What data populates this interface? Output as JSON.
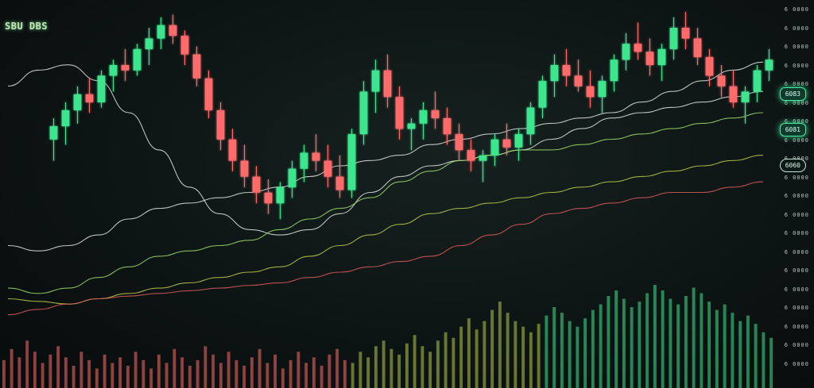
{
  "header": {
    "ticker": "SBU DBS"
  },
  "price_axis": {
    "ticks": [
      "6 0000",
      "6 0000",
      "6 0000",
      "6 0000",
      "6 0000",
      "6 0000",
      "6 0000",
      "6 0000",
      "6 0000",
      "6 0000",
      "6 0000",
      "6 0000",
      "6 0000",
      "6 0000",
      "6 0000",
      "6 0000",
      "6 0000",
      "6 0000",
      "6 0000",
      "6 0000"
    ],
    "badges": [
      "6083",
      "6081",
      "6060"
    ]
  },
  "colors": {
    "up": "#3ee68e",
    "down": "#ff6b6b",
    "ma_white": "#d9dfdc",
    "ma_green": "#9bd86b",
    "ma_red": "#d85a5a",
    "ma_olive": "#b8c84a"
  },
  "chart_data": {
    "type": "line",
    "y_scale": "relative",
    "grid": false,
    "candles": [
      {
        "o": 52,
        "h": 60,
        "l": 44,
        "c": 57
      },
      {
        "o": 57,
        "h": 66,
        "l": 50,
        "c": 63
      },
      {
        "o": 63,
        "h": 72,
        "l": 58,
        "c": 69
      },
      {
        "o": 69,
        "h": 75,
        "l": 62,
        "c": 66
      },
      {
        "o": 66,
        "h": 78,
        "l": 64,
        "c": 76
      },
      {
        "o": 76,
        "h": 82,
        "l": 70,
        "c": 80
      },
      {
        "o": 80,
        "h": 86,
        "l": 74,
        "c": 78
      },
      {
        "o": 78,
        "h": 88,
        "l": 76,
        "c": 86
      },
      {
        "o": 86,
        "h": 94,
        "l": 80,
        "c": 90
      },
      {
        "o": 90,
        "h": 98,
        "l": 86,
        "c": 95
      },
      {
        "o": 95,
        "h": 99,
        "l": 88,
        "c": 91
      },
      {
        "o": 91,
        "h": 93,
        "l": 80,
        "c": 84
      },
      {
        "o": 84,
        "h": 87,
        "l": 72,
        "c": 75
      },
      {
        "o": 75,
        "h": 78,
        "l": 60,
        "c": 63
      },
      {
        "o": 63,
        "h": 66,
        "l": 48,
        "c": 52
      },
      {
        "o": 52,
        "h": 56,
        "l": 40,
        "c": 44
      },
      {
        "o": 44,
        "h": 50,
        "l": 34,
        "c": 38
      },
      {
        "o": 38,
        "h": 42,
        "l": 28,
        "c": 32
      },
      {
        "o": 32,
        "h": 37,
        "l": 24,
        "c": 28
      },
      {
        "o": 28,
        "h": 36,
        "l": 22,
        "c": 34
      },
      {
        "o": 34,
        "h": 44,
        "l": 30,
        "c": 41
      },
      {
        "o": 41,
        "h": 50,
        "l": 36,
        "c": 47
      },
      {
        "o": 47,
        "h": 54,
        "l": 40,
        "c": 44
      },
      {
        "o": 44,
        "h": 50,
        "l": 34,
        "c": 38
      },
      {
        "o": 38,
        "h": 46,
        "l": 30,
        "c": 33
      },
      {
        "o": 33,
        "h": 56,
        "l": 30,
        "c": 54
      },
      {
        "o": 54,
        "h": 74,
        "l": 50,
        "c": 70
      },
      {
        "o": 70,
        "h": 82,
        "l": 62,
        "c": 78
      },
      {
        "o": 78,
        "h": 84,
        "l": 64,
        "c": 68
      },
      {
        "o": 68,
        "h": 72,
        "l": 52,
        "c": 56
      },
      {
        "o": 56,
        "h": 60,
        "l": 48,
        "c": 58
      },
      {
        "o": 58,
        "h": 66,
        "l": 52,
        "c": 63
      },
      {
        "o": 63,
        "h": 70,
        "l": 56,
        "c": 60
      },
      {
        "o": 60,
        "h": 64,
        "l": 50,
        "c": 54
      },
      {
        "o": 54,
        "h": 58,
        "l": 44,
        "c": 48
      },
      {
        "o": 48,
        "h": 52,
        "l": 40,
        "c": 44
      },
      {
        "o": 44,
        "h": 48,
        "l": 36,
        "c": 46
      },
      {
        "o": 46,
        "h": 54,
        "l": 42,
        "c": 52
      },
      {
        "o": 52,
        "h": 58,
        "l": 46,
        "c": 49
      },
      {
        "o": 49,
        "h": 56,
        "l": 44,
        "c": 54
      },
      {
        "o": 54,
        "h": 66,
        "l": 50,
        "c": 64
      },
      {
        "o": 64,
        "h": 76,
        "l": 60,
        "c": 74
      },
      {
        "o": 74,
        "h": 84,
        "l": 68,
        "c": 80
      },
      {
        "o": 80,
        "h": 86,
        "l": 72,
        "c": 76
      },
      {
        "o": 76,
        "h": 82,
        "l": 70,
        "c": 72
      },
      {
        "o": 72,
        "h": 78,
        "l": 64,
        "c": 68
      },
      {
        "o": 68,
        "h": 76,
        "l": 62,
        "c": 74
      },
      {
        "o": 74,
        "h": 84,
        "l": 70,
        "c": 82
      },
      {
        "o": 82,
        "h": 92,
        "l": 78,
        "c": 88
      },
      {
        "o": 88,
        "h": 96,
        "l": 82,
        "c": 85
      },
      {
        "o": 85,
        "h": 90,
        "l": 76,
        "c": 80
      },
      {
        "o": 80,
        "h": 88,
        "l": 74,
        "c": 86
      },
      {
        "o": 86,
        "h": 98,
        "l": 82,
        "c": 94
      },
      {
        "o": 94,
        "h": 100,
        "l": 86,
        "c": 90
      },
      {
        "o": 90,
        "h": 94,
        "l": 80,
        "c": 83
      },
      {
        "o": 83,
        "h": 86,
        "l": 72,
        "c": 76
      },
      {
        "o": 76,
        "h": 80,
        "l": 68,
        "c": 72
      },
      {
        "o": 72,
        "h": 78,
        "l": 64,
        "c": 66
      },
      {
        "o": 66,
        "h": 72,
        "l": 58,
        "c": 70
      },
      {
        "o": 70,
        "h": 80,
        "l": 66,
        "c": 78
      },
      {
        "o": 78,
        "h": 86,
        "l": 74,
        "c": 82
      }
    ],
    "moving_averages": [
      {
        "values": [
          90,
          96,
          98,
          92,
          80,
          66,
          52,
          42,
          36,
          34,
          36,
          42,
          50,
          56,
          60,
          62,
          64,
          66,
          70,
          74,
          78,
          80,
          82,
          84,
          86,
          88
        ],
        "color": "#d9dfdc"
      },
      {
        "values": [
          30,
          28,
          30,
          34,
          40,
          44,
          46,
          48,
          50,
          52,
          56,
          60,
          62,
          64,
          68,
          70,
          72,
          74,
          76,
          78,
          80,
          84,
          88,
          92,
          96,
          99
        ],
        "color": "#d9dfdc"
      },
      {
        "values": [
          14,
          12,
          14,
          18,
          22,
          26,
          28,
          30,
          32,
          36,
          40,
          44,
          48,
          54,
          58,
          62,
          64,
          66,
          66,
          68,
          70,
          72,
          74,
          76,
          78,
          80
        ],
        "color": "#9bd86b"
      },
      {
        "values": [
          10,
          9,
          8,
          10,
          12,
          14,
          16,
          18,
          20,
          22,
          26,
          30,
          34,
          38,
          42,
          44,
          46,
          48,
          50,
          52,
          54,
          56,
          58,
          60,
          62,
          64
        ],
        "color": "#b8c84a"
      },
      {
        "values": [
          4,
          6,
          8,
          10,
          11,
          12,
          13,
          14,
          15,
          16,
          18,
          20,
          22,
          24,
          26,
          30,
          34,
          38,
          42,
          44,
          46,
          48,
          50,
          50,
          52,
          54
        ],
        "color": "#d85a5a"
      }
    ],
    "volume": [
      20,
      28,
      22,
      34,
      26,
      18,
      24,
      30,
      22,
      16,
      26,
      20,
      14,
      24,
      18,
      22,
      16,
      26,
      20,
      14,
      24,
      18,
      28,
      22,
      16,
      20,
      30,
      24,
      18,
      26,
      20,
      16,
      22,
      28,
      18,
      24,
      14,
      20,
      26,
      18,
      22,
      16,
      24,
      28,
      20,
      18,
      26,
      22,
      30,
      34,
      28,
      24,
      32,
      38,
      30,
      26,
      34,
      40,
      36,
      44,
      50,
      42,
      48,
      56,
      62,
      54,
      48,
      44,
      40,
      46,
      52,
      58,
      54,
      48,
      44,
      50,
      56,
      60,
      66,
      70,
      64,
      58,
      62,
      68,
      74,
      70,
      64,
      60,
      66,
      72,
      68,
      62,
      56,
      60,
      54,
      48,
      52,
      46,
      40,
      36
    ]
  }
}
